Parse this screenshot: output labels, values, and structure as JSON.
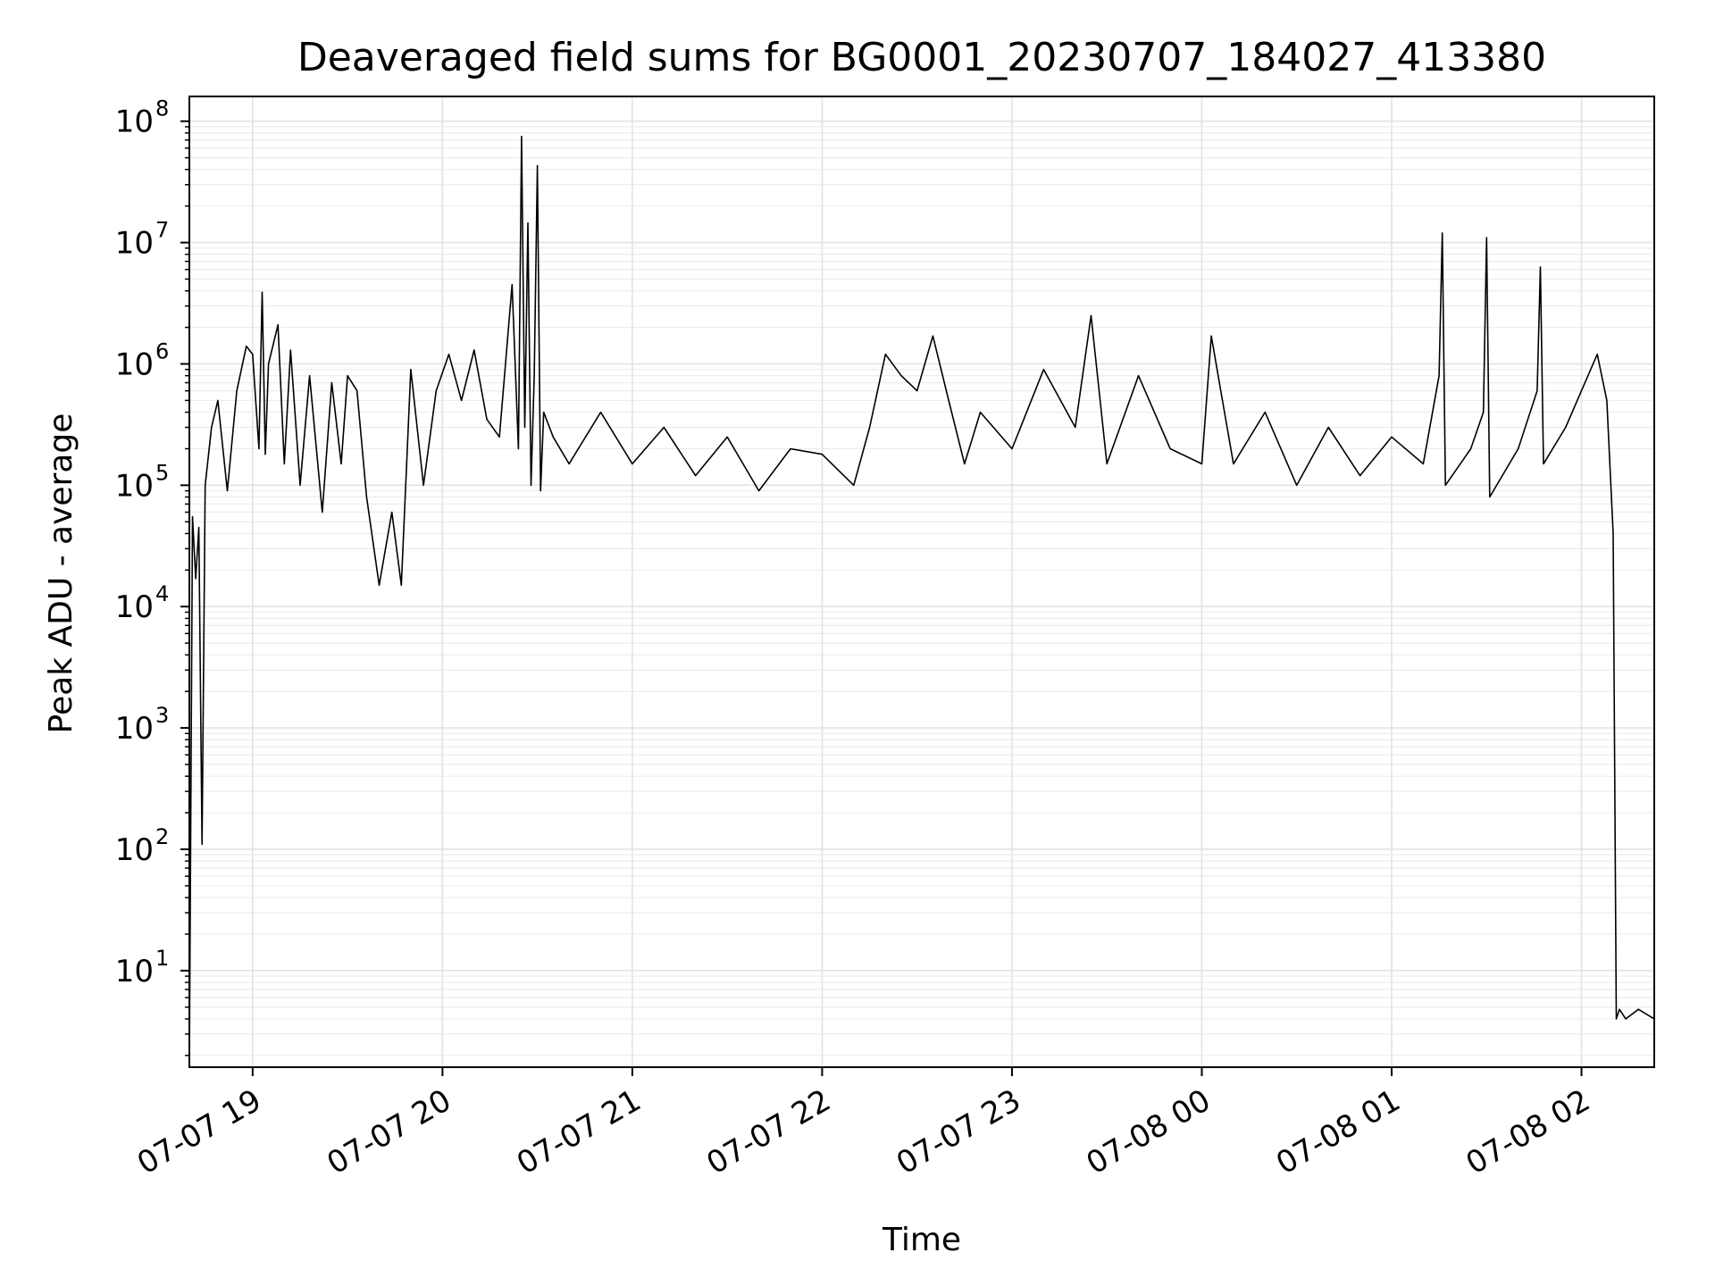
{
  "chart_data": {
    "type": "line",
    "title": "Deaveraged field sums for BG0001_20230707_184027_413380",
    "xlabel": "Time",
    "ylabel": "Peak ADU - average",
    "yscale": "log",
    "ylim": [
      1.6,
      160000000
    ],
    "xlim": [
      "2023-07-07 18:40",
      "2023-07-08 02:23"
    ],
    "grid": true,
    "line_color": "#000000",
    "x_ticks": [
      "2023-07-07 19:00",
      "2023-07-07 20:00",
      "2023-07-07 21:00",
      "2023-07-07 22:00",
      "2023-07-07 23:00",
      "2023-07-08 00:00",
      "2023-07-08 01:00",
      "2023-07-08 02:00"
    ],
    "x_tick_labels": [
      "07-07 19",
      "07-07 20",
      "07-07 21",
      "07-07 22",
      "07-07 23",
      "07-08 00",
      "07-08 01",
      "07-08 02"
    ],
    "y_ticks": [
      {
        "value": 10,
        "base": "10",
        "exp": "1"
      },
      {
        "value": 100,
        "base": "10",
        "exp": "2"
      },
      {
        "value": 1000,
        "base": "10",
        "exp": "3"
      },
      {
        "value": 10000,
        "base": "10",
        "exp": "4"
      },
      {
        "value": 100000,
        "base": "10",
        "exp": "5"
      },
      {
        "value": 1000000,
        "base": "10",
        "exp": "6"
      },
      {
        "value": 10000000,
        "base": "10",
        "exp": "7"
      },
      {
        "value": 100000000,
        "base": "10",
        "exp": "8"
      }
    ],
    "series": [
      {
        "x": [
          "2023-07-07 18:40",
          "2023-07-07 18:41",
          "2023-07-07 18:42",
          "2023-07-07 18:43",
          "2023-07-07 18:44",
          "2023-07-07 18:45",
          "2023-07-07 18:47",
          "2023-07-07 18:49",
          "2023-07-07 18:52",
          "2023-07-07 18:55",
          "2023-07-07 18:58",
          "2023-07-07 19:00",
          "2023-07-07 19:02",
          "2023-07-07 19:03",
          "2023-07-07 19:04",
          "2023-07-07 19:05",
          "2023-07-07 19:08",
          "2023-07-07 19:10",
          "2023-07-07 19:12",
          "2023-07-07 19:15",
          "2023-07-07 19:18",
          "2023-07-07 19:22",
          "2023-07-07 19:25",
          "2023-07-07 19:28",
          "2023-07-07 19:30",
          "2023-07-07 19:33",
          "2023-07-07 19:36",
          "2023-07-07 19:40",
          "2023-07-07 19:44",
          "2023-07-07 19:47",
          "2023-07-07 19:50",
          "2023-07-07 19:54",
          "2023-07-07 19:58",
          "2023-07-07 20:02",
          "2023-07-07 20:06",
          "2023-07-07 20:10",
          "2023-07-07 20:14",
          "2023-07-07 20:18",
          "2023-07-07 20:22",
          "2023-07-07 20:24",
          "2023-07-07 20:25",
          "2023-07-07 20:26",
          "2023-07-07 20:27",
          "2023-07-07 20:28",
          "2023-07-07 20:29",
          "2023-07-07 20:30",
          "2023-07-07 20:31",
          "2023-07-07 20:32",
          "2023-07-07 20:35",
          "2023-07-07 20:40",
          "2023-07-07 20:50",
          "2023-07-07 21:00",
          "2023-07-07 21:10",
          "2023-07-07 21:20",
          "2023-07-07 21:30",
          "2023-07-07 21:40",
          "2023-07-07 21:50",
          "2023-07-07 22:00",
          "2023-07-07 22:10",
          "2023-07-07 22:15",
          "2023-07-07 22:20",
          "2023-07-07 22:25",
          "2023-07-07 22:30",
          "2023-07-07 22:35",
          "2023-07-07 22:40",
          "2023-07-07 22:45",
          "2023-07-07 22:50",
          "2023-07-07 23:00",
          "2023-07-07 23:10",
          "2023-07-07 23:20",
          "2023-07-07 23:25",
          "2023-07-07 23:30",
          "2023-07-07 23:40",
          "2023-07-07 23:50",
          "2023-07-08 00:00",
          "2023-07-08 00:03",
          "2023-07-08 00:06",
          "2023-07-08 00:10",
          "2023-07-08 00:20",
          "2023-07-08 00:30",
          "2023-07-08 00:40",
          "2023-07-08 00:50",
          "2023-07-08 01:00",
          "2023-07-08 01:10",
          "2023-07-08 01:15",
          "2023-07-08 01:16",
          "2023-07-08 01:17",
          "2023-07-08 01:25",
          "2023-07-08 01:29",
          "2023-07-08 01:30",
          "2023-07-08 01:31",
          "2023-07-08 01:40",
          "2023-07-08 01:46",
          "2023-07-08 01:47",
          "2023-07-08 01:48",
          "2023-07-08 01:55",
          "2023-07-08 02:00",
          "2023-07-08 02:05",
          "2023-07-08 02:08",
          "2023-07-08 02:10",
          "2023-07-08 02:11",
          "2023-07-08 02:12",
          "2023-07-08 02:14",
          "2023-07-08 02:18",
          "2023-07-08 02:23"
        ],
        "y": [
          1.6,
          55000,
          17000,
          45000,
          110,
          100000,
          300000,
          500000,
          90000,
          600000,
          1400000,
          1200000,
          200000,
          3900000,
          180000,
          1000000,
          2100000,
          150000,
          1300000,
          100000,
          800000,
          60000,
          700000,
          150000,
          800000,
          600000,
          80000,
          15000,
          60000,
          15000,
          900000,
          100000,
          600000,
          1200000,
          500000,
          1300000,
          350000,
          250000,
          4500000,
          200000,
          75000000,
          300000,
          14500000,
          100000,
          800000,
          43000000,
          90000,
          400000,
          250000,
          150000,
          400000,
          150000,
          300000,
          120000,
          250000,
          90000,
          200000,
          180000,
          100000,
          300000,
          1200000,
          800000,
          600000,
          1700000,
          500000,
          150000,
          400000,
          200000,
          900000,
          300000,
          2500000,
          150000,
          800000,
          200000,
          150000,
          1700000,
          600000,
          150000,
          400000,
          100000,
          300000,
          120000,
          250000,
          150000,
          800000,
          12000000,
          100000,
          200000,
          400000,
          11000000,
          80000,
          200000,
          600000,
          6300000,
          150000,
          300000,
          600000,
          1200000,
          500000,
          40000,
          4,
          4.8,
          4,
          4.8,
          4
        ]
      }
    ]
  }
}
